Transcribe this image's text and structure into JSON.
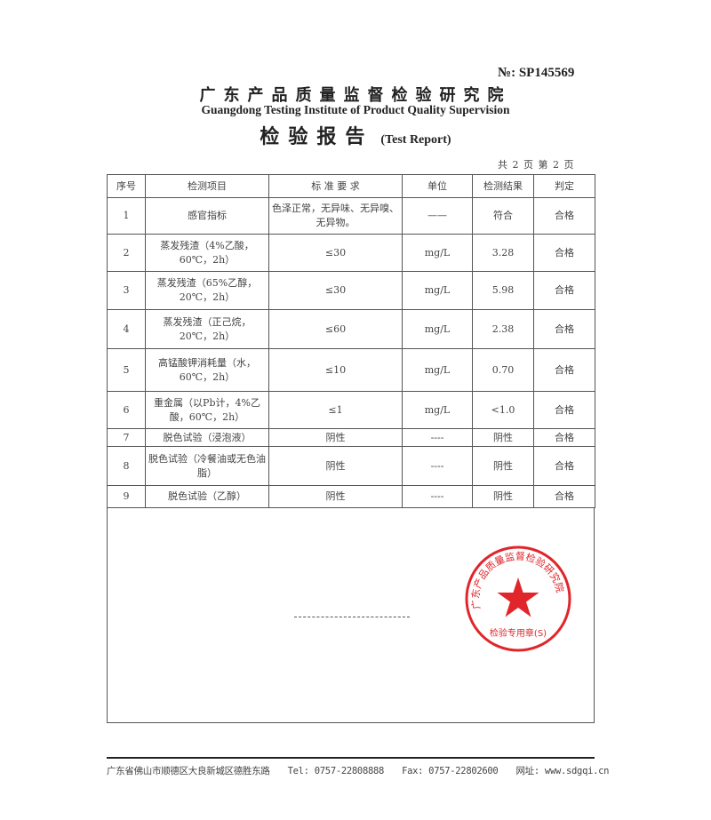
{
  "report_no": "№: SP145569",
  "institute_cn": "广东产品质量监督检验研究院",
  "institute_en": "Guangdong Testing Institute of Product Quality Supervision",
  "report_title_cn": "检验报告",
  "report_title_en": "(Test Report)",
  "page_info": "共 2 页 第 2 页",
  "table": {
    "headers": [
      "序号",
      "检测项目",
      "标 准 要 求",
      "单位",
      "检测结果",
      "判定"
    ],
    "rows": [
      {
        "no": "1",
        "item": "感官指标",
        "standard": "色泽正常，无异味、无异嗅、无异物。",
        "unit": "——",
        "result": "符合",
        "verdict": "合格"
      },
      {
        "no": "2",
        "item": "蒸发残渣（4%乙酸，60℃，2h）",
        "standard": "≤30",
        "unit": "mg/L",
        "result": "3.28",
        "verdict": "合格"
      },
      {
        "no": "3",
        "item": "蒸发残渣（65%乙醇，20℃，2h）",
        "standard": "≤30",
        "unit": "mg/L",
        "result": "5.98",
        "verdict": "合格"
      },
      {
        "no": "4",
        "item": "蒸发残渣（正己烷，20℃，2h）",
        "standard": "≤60",
        "unit": "mg/L",
        "result": "2.38",
        "verdict": "合格"
      },
      {
        "no": "5",
        "item": "高锰酸钾消耗量（水，60℃，2h）",
        "standard": "≤10",
        "unit": "mg/L",
        "result": "0.70",
        "verdict": "合格"
      },
      {
        "no": "6",
        "item": "重金属（以Pb计，4%乙酸，60℃，2h）",
        "standard": "≤1",
        "unit": "mg/L",
        "result": "<1.0",
        "verdict": "合格"
      },
      {
        "no": "7",
        "item": "脱色试验（浸泡液）",
        "standard": "阴性",
        "unit": "----",
        "result": "阴性",
        "verdict": "合格"
      },
      {
        "no": "8",
        "item": "脱色试验（冷餐油或无色油脂）",
        "standard": "阴性",
        "unit": "----",
        "result": "阴性",
        "verdict": "合格"
      },
      {
        "no": "9",
        "item": "脱色试验（乙醇）",
        "standard": "阴性",
        "unit": "----",
        "result": "阴性",
        "verdict": "合格"
      }
    ]
  },
  "stamp": {
    "ring_text": "广东产品质量监督检验研究院",
    "center_text": "检验专用章(S)",
    "color": "#e0262b"
  },
  "footer": {
    "address": "广东省佛山市顺德区大良新城区德胜东路",
    "tel": "Tel: 0757-22808888",
    "fax": "Fax: 0757-22802600",
    "website": "网址: www.sdgqi.cn"
  }
}
